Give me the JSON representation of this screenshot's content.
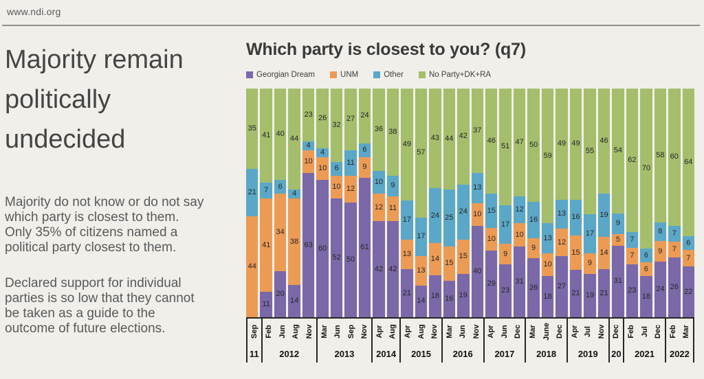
{
  "page": {
    "url": "www.ndi.org"
  },
  "left_panel": {
    "headline": "Majority remain\npolitically\nundecided",
    "paragraph1": "Majority do not know or do not say\nwhich party is closest to them.\nOnly 35% of citizens named a\npolitical party closest to them.",
    "paragraph2": "Declared support for individual\nparties is so low that they cannot\nbe taken as a guide to the\noutcome of future elections."
  },
  "chart_data": {
    "type": "bar",
    "variant": "stacked-100",
    "title": "Which party is closest to you? (q7)",
    "ylim": [
      0,
      100
    ],
    "gridlines": false,
    "data_labels": true,
    "legend_position": "top-left",
    "legend": [
      "Georgian Dream",
      "UNM",
      "Other",
      "No Party+DK+RA"
    ],
    "colors": {
      "Georgian Dream": "#7A68A8",
      "UNM": "#EC9B55",
      "Other": "#5BA7C7",
      "No Party+DK+RA": "#A4BE6B"
    },
    "background": "#F1EFEA",
    "year_groups": [
      {
        "year": "11",
        "months": [
          "Sep"
        ]
      },
      {
        "year": "2012",
        "months": [
          "Feb",
          "Jun",
          "Aug",
          "Nov"
        ]
      },
      {
        "year": "2013",
        "months": [
          "Mar",
          "Jun",
          "Sep",
          "Nov"
        ]
      },
      {
        "year": "2014",
        "months": [
          "Apr",
          "Aug"
        ]
      },
      {
        "year": "2015",
        "months": [
          "Apr",
          "Aug",
          "Nov"
        ]
      },
      {
        "year": "2016",
        "months": [
          "Mar",
          "Jun",
          "Nov"
        ]
      },
      {
        "year": "2017",
        "months": [
          "Apr",
          "Jun",
          "Dec"
        ]
      },
      {
        "year": "2018",
        "months": [
          "Mar",
          "June",
          "Dec"
        ]
      },
      {
        "year": "2019",
        "months": [
          "Apr",
          "Jul",
          "Nov"
        ]
      },
      {
        "year": "20",
        "months": [
          "Dec"
        ]
      },
      {
        "year": "2021",
        "months": [
          "Feb",
          "Jul",
          "Dec"
        ]
      },
      {
        "year": "2022",
        "months": [
          "Feb",
          "Mar"
        ]
      }
    ],
    "series": [
      {
        "name": "Georgian Dream",
        "values": [
          null,
          11,
          20,
          14,
          63,
          60,
          52,
          50,
          61,
          42,
          42,
          21,
          14,
          18,
          16,
          19,
          40,
          29,
          23,
          31,
          26,
          18,
          27,
          21,
          19,
          21,
          31,
          23,
          18,
          24,
          26,
          22
        ]
      },
      {
        "name": "UNM",
        "values": [
          44,
          41,
          34,
          38,
          10,
          10,
          10,
          12,
          9,
          12,
          11,
          13,
          13,
          14,
          15,
          15,
          10,
          10,
          9,
          10,
          9,
          10,
          12,
          15,
          9,
          14,
          5,
          7,
          6,
          9,
          7,
          7
        ]
      },
      {
        "name": "Other",
        "values": [
          21,
          7,
          6,
          4,
          4,
          4,
          6,
          11,
          6,
          10,
          9,
          17,
          17,
          24,
          25,
          24,
          13,
          15,
          17,
          12,
          16,
          13,
          13,
          16,
          17,
          19,
          9,
          7,
          6,
          8,
          7,
          6
        ]
      },
      {
        "name": "No Party+DK+RA",
        "values": [
          35,
          41,
          40,
          44,
          23,
          26,
          32,
          27,
          24,
          36,
          38,
          49,
          57,
          43,
          44,
          42,
          37,
          46,
          51,
          47,
          50,
          59,
          49,
          49,
          55,
          46,
          54,
          62,
          70,
          58,
          60,
          64
        ]
      }
    ]
  }
}
